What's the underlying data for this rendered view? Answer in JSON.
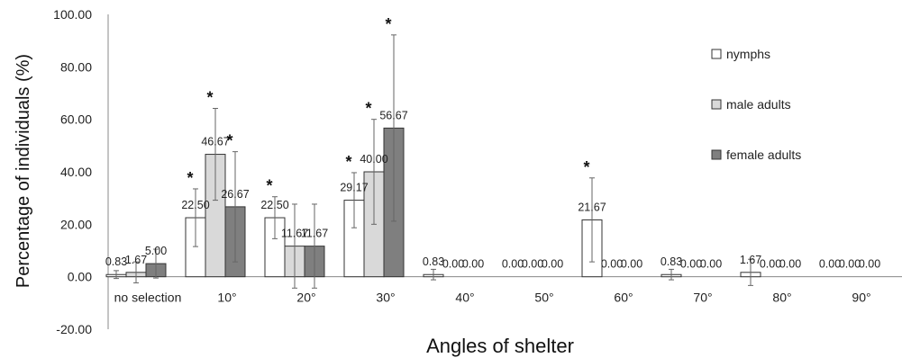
{
  "chart_data": {
    "type": "bar",
    "xlabel": "Angles of shelter",
    "ylabel": "Percentage of individuals (%)",
    "ylim": [
      -20,
      100
    ],
    "yticks": [
      "-20.00",
      "0.00",
      "20.00",
      "40.00",
      "60.00",
      "80.00",
      "100.00"
    ],
    "grid": false,
    "legend_position": "right",
    "categories": [
      "no selection",
      "10°",
      "20°",
      "30°",
      "40°",
      "50°",
      "60°",
      "70°",
      "80°",
      "90°"
    ],
    "series": [
      {
        "name": "nymphs",
        "color": "#ffffff",
        "values": [
          0.83,
          22.5,
          22.5,
          29.17,
          0.83,
          0.0,
          21.67,
          0.83,
          1.67,
          0.0
        ],
        "labels": [
          "0.83",
          "22.50",
          "22.50",
          "29.17",
          "0.83",
          "0.00",
          "21.67",
          "0.83",
          "1.67",
          "0.00"
        ],
        "errors": [
          1.5,
          11,
          8,
          10.5,
          2,
          0,
          16,
          2,
          5,
          0
        ],
        "significant": [
          false,
          true,
          true,
          true,
          false,
          false,
          true,
          false,
          false,
          false
        ]
      },
      {
        "name": "male adults",
        "color": "#d9d9d9",
        "values": [
          1.67,
          46.67,
          11.67,
          40.0,
          0.0,
          0.0,
          0.0,
          0.0,
          0.0,
          0.0
        ],
        "labels": [
          "1.67",
          "46.67",
          "11.67",
          "40.00",
          "0.00",
          "0.00",
          "0.00",
          "0.00",
          "0.00",
          "0.00"
        ],
        "errors": [
          4,
          17.5,
          16,
          20,
          0,
          0,
          0,
          0,
          0,
          0
        ],
        "significant": [
          false,
          true,
          false,
          true,
          false,
          false,
          false,
          false,
          false,
          false
        ]
      },
      {
        "name": "female adults",
        "color": "#7f7f7f",
        "values": [
          5.0,
          26.67,
          11.67,
          56.67,
          0.0,
          0.0,
          0.0,
          0.0,
          0.0,
          0.0
        ],
        "labels": [
          "5.00",
          "26.67",
          "11.67",
          "56.67",
          "0.00",
          "0.00",
          "0.00",
          "0.00",
          "0.00",
          "0.00"
        ],
        "errors": [
          5.5,
          21,
          16,
          35.5,
          0,
          0,
          0,
          0,
          0,
          0
        ],
        "significant": [
          false,
          true,
          false,
          true,
          false,
          false,
          false,
          false,
          false,
          false
        ]
      }
    ],
    "significance_marker": "*"
  }
}
